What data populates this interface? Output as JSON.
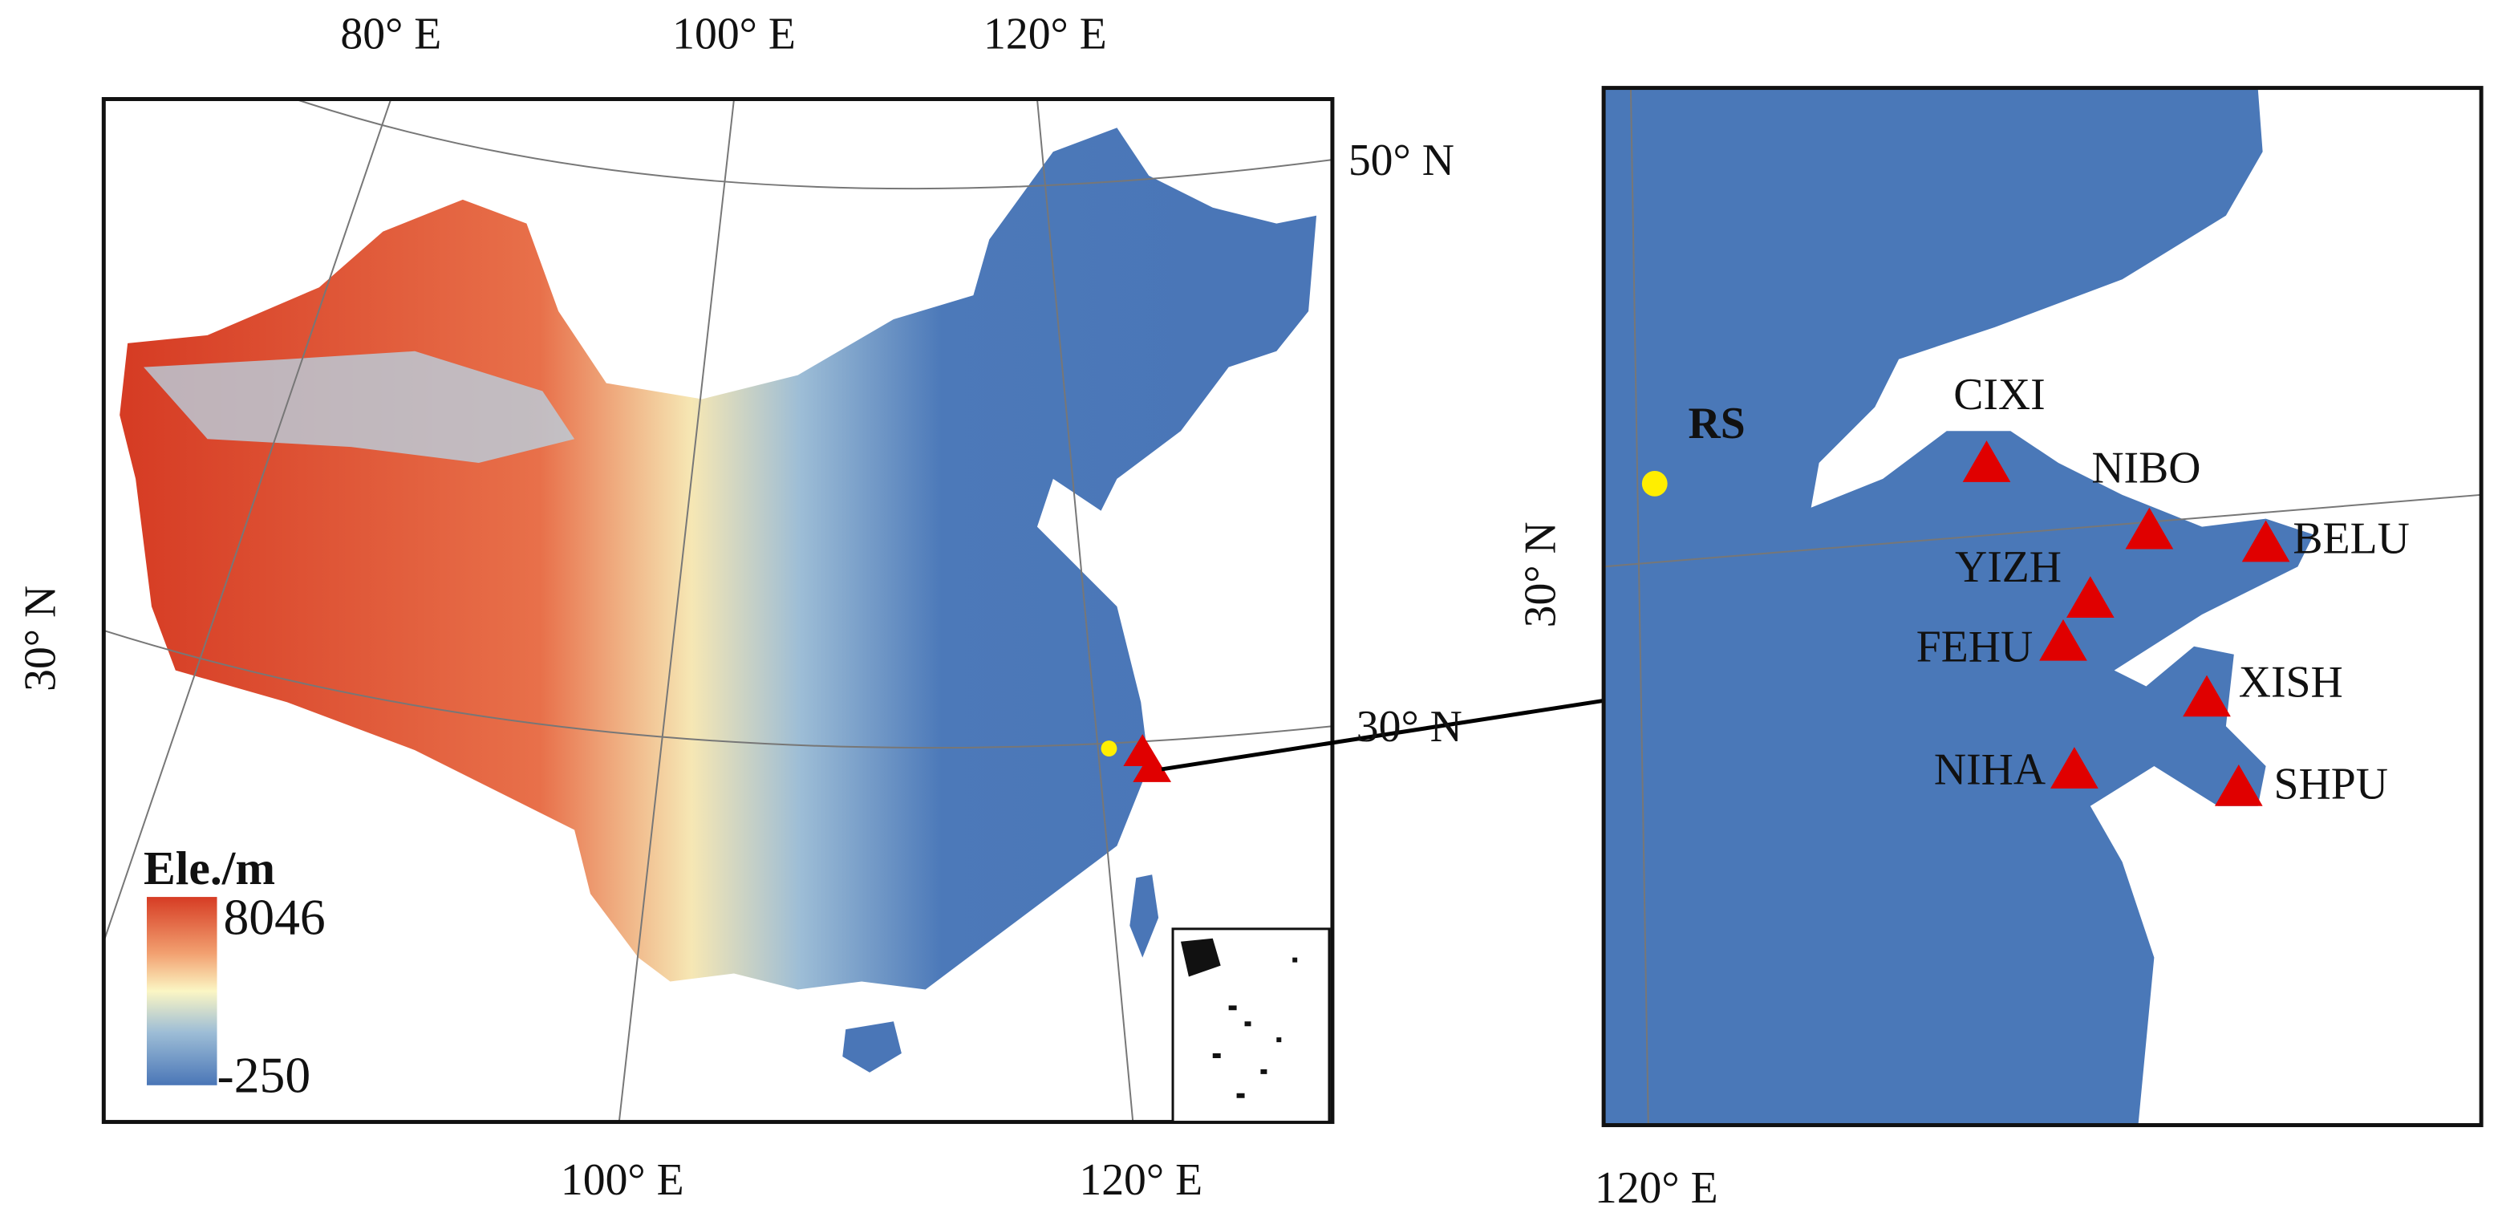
{
  "left_map": {
    "graticule_labels": {
      "top": [
        "80° E",
        "100° E",
        "120° E"
      ],
      "right": [
        "50° N",
        "30° N"
      ],
      "left": [
        "30° N"
      ],
      "bottom": [
        "100° E",
        "120° E"
      ]
    },
    "legend": {
      "title": "Ele./m",
      "max": "8046",
      "min": "-250"
    }
  },
  "right_map": {
    "graticule_labels": {
      "left": "30° N",
      "bottom": "120° E"
    },
    "reference": "RS",
    "stations": [
      "CIXI",
      "NIBO",
      "BELU",
      "YIZH",
      "FEHU",
      "XISH",
      "NIHA",
      "SHPU"
    ]
  }
}
